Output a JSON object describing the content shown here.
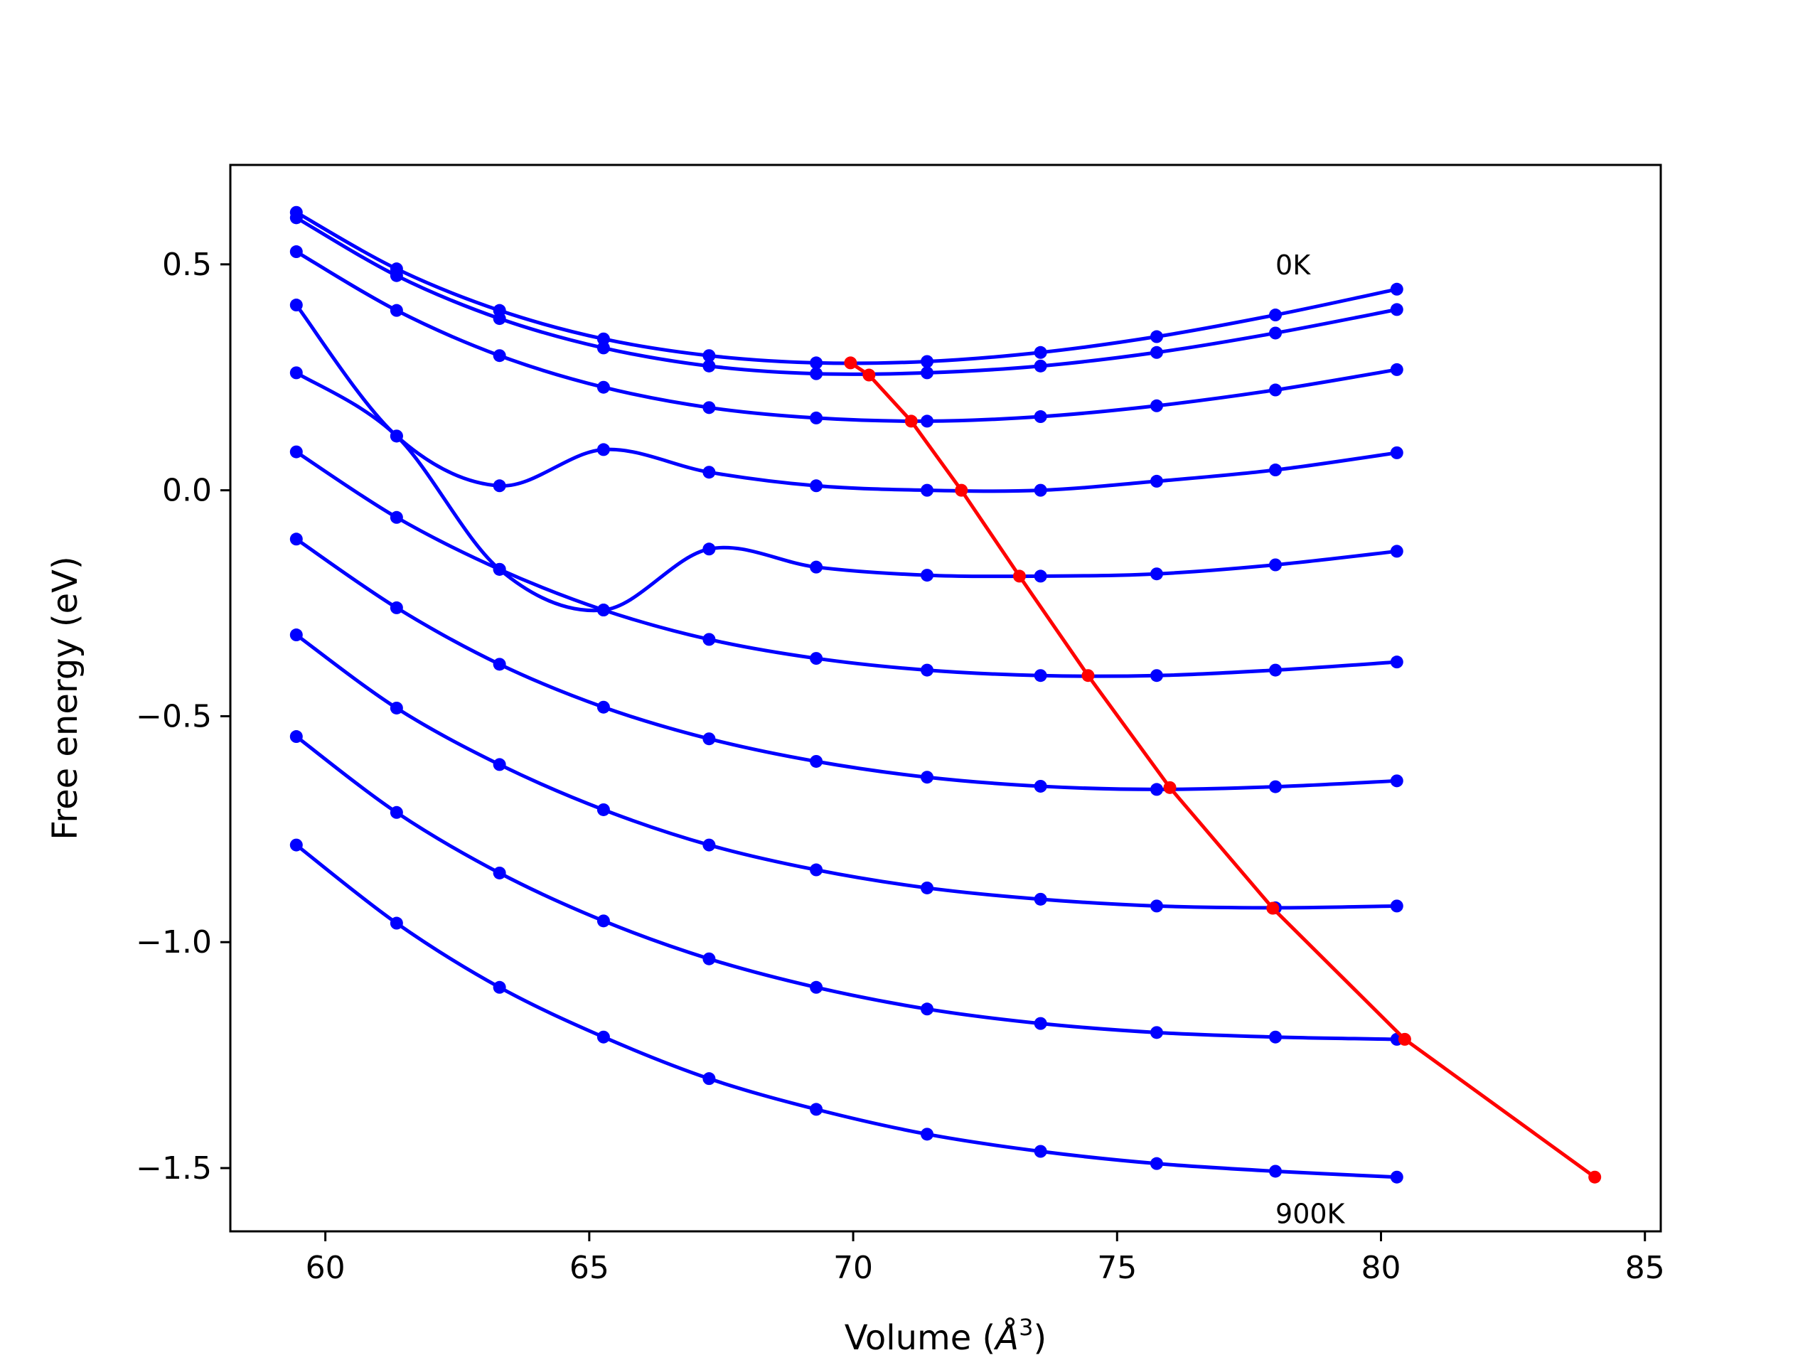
{
  "chart_data": {
    "type": "line",
    "title": "",
    "xlabel_prefix": "Volume (",
    "xlabel_unit": "Å",
    "xlabel_exp": "3",
    "xlabel_suffix": ")",
    "ylabel": "Free energy (eV)",
    "xlim": [
      58.2,
      85.3
    ],
    "ylim": [
      -1.64,
      0.72
    ],
    "xticks": [
      60,
      65,
      70,
      75,
      80,
      85
    ],
    "xtick_labels": [
      "60",
      "65",
      "70",
      "75",
      "80",
      "85"
    ],
    "yticks": [
      0.5,
      0.0,
      -0.5,
      -1.0,
      -1.5
    ],
    "ytick_labels": [
      "0.5",
      "0.0",
      "−0.5",
      "−1.0",
      "−1.5"
    ],
    "grid": false,
    "annotations": [
      {
        "text": "0K",
        "x": 78.0,
        "y": 0.5
      },
      {
        "text": "900K",
        "x": 78.0,
        "y": -1.6
      }
    ],
    "curve_color": "#0000ff",
    "min_color": "#ff0000",
    "x": [
      59.45,
      61.35,
      63.3,
      65.27,
      67.27,
      69.3,
      71.4,
      73.55,
      75.75,
      78.0,
      80.3
    ],
    "series": [
      {
        "y": [
          0.615,
          0.49,
          0.398,
          0.335,
          0.298,
          0.282,
          0.285,
          0.305,
          0.34,
          0.388,
          0.445
        ]
      },
      {
        "y": [
          0.603,
          0.475,
          0.38,
          0.315,
          0.275,
          0.258,
          0.26,
          0.275,
          0.305,
          0.348,
          0.4
        ]
      },
      {
        "y": [
          0.528,
          0.398,
          0.298,
          0.228,
          0.183,
          0.16,
          0.153,
          0.163,
          0.187,
          0.222,
          0.267
        ]
      },
      {
        "y": [
          0.41,
          0.12,
          0.01,
          0.09,
          0.04,
          0.01,
          0.0,
          0.0,
          0.02,
          0.045,
          0.083
        ]
      },
      {
        "y": [
          0.26,
          0.12,
          -0.175,
          -0.265,
          -0.13,
          -0.17,
          -0.188,
          -0.19,
          -0.185,
          -0.165,
          -0.135
        ]
      },
      {
        "y": [
          0.085,
          -0.06,
          -0.175,
          -0.265,
          -0.33,
          -0.372,
          -0.398,
          -0.41,
          -0.41,
          -0.398,
          -0.38
        ]
      },
      {
        "y": [
          -0.108,
          -0.26,
          -0.385,
          -0.48,
          -0.55,
          -0.6,
          -0.635,
          -0.655,
          -0.662,
          -0.656,
          -0.643
        ]
      },
      {
        "y": [
          -0.32,
          -0.482,
          -0.607,
          -0.707,
          -0.785,
          -0.84,
          -0.88,
          -0.905,
          -0.92,
          -0.924,
          -0.92
        ]
      },
      {
        "y": [
          -0.545,
          -0.713,
          -0.847,
          -0.953,
          -1.037,
          -1.1,
          -1.148,
          -1.18,
          -1.2,
          -1.21,
          -1.215
        ]
      },
      {
        "y": [
          -0.785,
          -0.958,
          -1.1,
          -1.21,
          -1.302,
          -1.37,
          -1.425,
          -1.463,
          -1.49,
          -1.507,
          -1.52
        ]
      }
    ],
    "minima": {
      "x": [
        69.95,
        70.3,
        71.1,
        72.05,
        73.15,
        74.45,
        76.0,
        77.95,
        80.45,
        84.05
      ],
      "y": [
        0.282,
        0.255,
        0.153,
        0.0,
        -0.19,
        -0.41,
        -0.658,
        -0.925,
        -1.215,
        -1.52
      ]
    }
  }
}
